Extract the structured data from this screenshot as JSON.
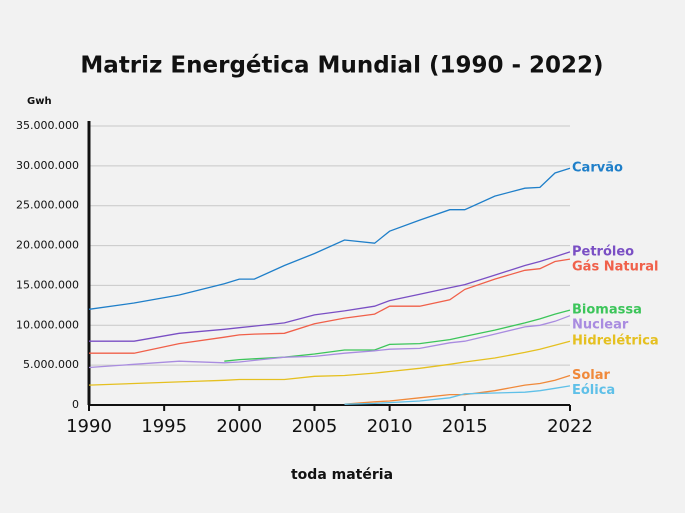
{
  "chart_data": {
    "type": "line",
    "title": "Matriz Energética Mundial (1990 - 2022)",
    "y_label": "Gwh",
    "footer": "toda matéria",
    "x": [
      1990,
      1993,
      1996,
      1999,
      2000,
      2001,
      2003,
      2005,
      2007,
      2009,
      2010,
      2012,
      2014,
      2015,
      2017,
      2019,
      2020,
      2021,
      2022
    ],
    "xlim": [
      1990,
      2022
    ],
    "xticks": [
      1990,
      1995,
      2000,
      2005,
      2010,
      2015,
      2022
    ],
    "ylim": [
      0,
      35000000
    ],
    "yticks": [
      0,
      {
        "value": 5000000,
        "label": "5.000.000"
      },
      {
        "value": 10000000,
        "label": "10.000.000"
      },
      {
        "value": 15000000,
        "label": "15.000.000"
      },
      {
        "value": 20000000,
        "label": "20.000.000"
      },
      {
        "value": 25000000,
        "label": "25.000.000"
      },
      {
        "value": 30000000,
        "label": "30.000.000"
      },
      {
        "value": 35000000,
        "label": "35.000.000"
      }
    ],
    "grid": true,
    "series": [
      {
        "name": "Carvão",
        "color": "#1f7fc9",
        "values": [
          12000000,
          12800000,
          13800000,
          15200000,
          15800000,
          15800000,
          17500000,
          19000000,
          20700000,
          20300000,
          21800000,
          23200000,
          24500000,
          24500000,
          26200000,
          27200000,
          27300000,
          29100000,
          29700000
        ]
      },
      {
        "name": "Petróleo",
        "color": "#7a4fc4",
        "values": [
          8000000,
          8000000,
          9000000,
          9500000,
          9700000,
          9900000,
          10300000,
          11300000,
          11800000,
          12400000,
          13100000,
          13900000,
          14700000,
          15100000,
          16300000,
          17500000,
          18000000,
          18600000,
          19200000
        ]
      },
      {
        "name": "Gás Natural",
        "color": "#f0604a",
        "values": [
          6500000,
          6500000,
          7700000,
          8500000,
          8800000,
          8900000,
          9000000,
          10200000,
          10900000,
          11400000,
          12400000,
          12400000,
          13200000,
          14500000,
          15800000,
          16900000,
          17100000,
          18000000,
          18300000
        ]
      },
      {
        "name": "Biomassa",
        "color": "#3cc55a",
        "values": [
          null,
          null,
          null,
          5500000,
          5700000,
          5800000,
          6000000,
          6400000,
          6900000,
          6900000,
          7600000,
          7700000,
          8200000,
          8600000,
          9400000,
          10300000,
          10800000,
          11400000,
          11900000
        ]
      },
      {
        "name": "Nuclear",
        "color": "#a98ce0",
        "values": [
          4700000,
          5100000,
          5500000,
          5300000,
          5400000,
          5600000,
          6000000,
          6100000,
          6500000,
          6800000,
          7000000,
          7100000,
          7800000,
          8000000,
          8900000,
          9800000,
          10000000,
          10500000,
          11200000
        ]
      },
      {
        "name": "Hidrelétrica",
        "color": "#e5c020",
        "values": [
          2500000,
          2700000,
          2900000,
          3100000,
          3200000,
          3200000,
          3200000,
          3600000,
          3700000,
          4000000,
          4200000,
          4600000,
          5100000,
          5400000,
          5900000,
          6600000,
          7000000,
          7500000,
          8000000
        ]
      },
      {
        "name": "Solar",
        "color": "#f0893a",
        "values": [
          null,
          null,
          null,
          null,
          null,
          null,
          null,
          null,
          100000,
          400000,
          500000,
          900000,
          1300000,
          1300000,
          1800000,
          2500000,
          2700000,
          3100000,
          3700000
        ]
      },
      {
        "name": "Eólica",
        "color": "#5fc0e8",
        "values": [
          null,
          null,
          null,
          null,
          null,
          null,
          null,
          null,
          100000,
          200000,
          300000,
          500000,
          900000,
          1400000,
          1500000,
          1600000,
          1800000,
          2100000,
          2400000
        ]
      }
    ]
  }
}
